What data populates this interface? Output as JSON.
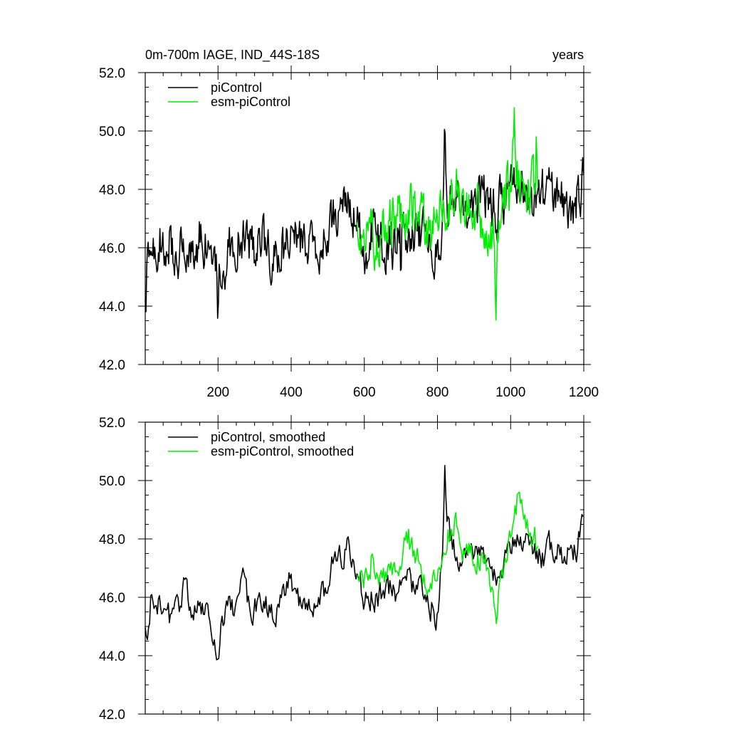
{
  "chart_data": [
    {
      "type": "line",
      "title": "0m-700m IAGE, IND_44S-18S",
      "units": "years",
      "xlim": [
        1,
        1200
      ],
      "ylim": [
        42,
        52
      ],
      "xticks": [
        200,
        400,
        600,
        800,
        1000,
        1200
      ],
      "xtick_labels": [
        "200",
        "400",
        "600",
        "800",
        "1000",
        "1200"
      ],
      "yticks": [
        42,
        44,
        46,
        48,
        50,
        52
      ],
      "ytick_labels": [
        "42.0",
        "44.0",
        "46.0",
        "48.0",
        "50.0",
        "52.0"
      ],
      "legend": [
        "piControl",
        "esm-piControl"
      ],
      "series": [
        {
          "name": "piControl",
          "color": "#000000",
          "start": 1,
          "end": 1200,
          "step": 2,
          "keys": [
            [
              1,
              44.8
            ],
            [
              10,
              45.3
            ],
            [
              30,
              46.0
            ],
            [
              50,
              46.4
            ],
            [
              80,
              45.9
            ],
            [
              100,
              46.0
            ],
            [
              120,
              45.8
            ],
            [
              150,
              46.3
            ],
            [
              170,
              46.1
            ],
            [
              190,
              45.2
            ],
            [
              200,
              44.9
            ],
            [
              230,
              45.9
            ],
            [
              260,
              46.3
            ],
            [
              290,
              46.0
            ],
            [
              320,
              46.2
            ],
            [
              350,
              45.5
            ],
            [
              380,
              46.0
            ],
            [
              400,
              46.4
            ],
            [
              430,
              46.0
            ],
            [
              460,
              45.8
            ],
            [
              490,
              46.4
            ],
            [
              520,
              47.2
            ],
            [
              550,
              47.4
            ],
            [
              580,
              47.0
            ],
            [
              600,
              46.0
            ],
            [
              630,
              46.5
            ],
            [
              660,
              46.2
            ],
            [
              690,
              46.2
            ],
            [
              720,
              46.6
            ],
            [
              750,
              46.5
            ],
            [
              780,
              46.2
            ],
            [
              800,
              46.0
            ],
            [
              820,
              47.5
            ],
            [
              840,
              47.9
            ],
            [
              860,
              47.5
            ],
            [
              880,
              47.5
            ],
            [
              900,
              47.6
            ],
            [
              930,
              47.8
            ],
            [
              960,
              47.2
            ],
            [
              990,
              47.9
            ],
            [
              1010,
              48.2
            ],
            [
              1040,
              48.1
            ],
            [
              1060,
              47.8
            ],
            [
              1100,
              47.8
            ],
            [
              1140,
              47.6
            ],
            [
              1170,
              47.5
            ],
            [
              1200,
              48.3
            ]
          ],
          "noise": 0.75,
          "events": [
            [
              200,
              -2.0,
              4
            ],
            [
              820,
              2.7,
              6
            ],
            [
              700,
              -1.8,
              3
            ],
            [
              1,
              -1.0,
              5
            ],
            [
              960,
              -0.8,
              6
            ]
          ]
        },
        {
          "name": "esm-piControl",
          "color": "#00ee00",
          "start": 580,
          "end": 1075,
          "step": 2,
          "keys": [
            [
              580,
              46.4
            ],
            [
              600,
              46.5
            ],
            [
              630,
              46.3
            ],
            [
              660,
              46.6
            ],
            [
              700,
              47.3
            ],
            [
              720,
              47.6
            ],
            [
              750,
              46.9
            ],
            [
              780,
              46.3
            ],
            [
              800,
              47.0
            ],
            [
              830,
              47.6
            ],
            [
              850,
              47.9
            ],
            [
              880,
              47.3
            ],
            [
              900,
              47.3
            ],
            [
              930,
              47.1
            ],
            [
              950,
              46.3
            ],
            [
              960,
              45.8
            ],
            [
              980,
              47.4
            ],
            [
              1000,
              48.3
            ],
            [
              1010,
              48.7
            ],
            [
              1030,
              48.4
            ],
            [
              1060,
              48.1
            ],
            [
              1075,
              48.4
            ]
          ],
          "noise": 0.8,
          "events": [
            [
              960,
              -1.4,
              4
            ],
            [
              1010,
              1.3,
              5
            ],
            [
              1070,
              1.0,
              4
            ]
          ]
        }
      ]
    },
    {
      "type": "line",
      "title": "",
      "units": "",
      "xlim": [
        1,
        1200
      ],
      "ylim": [
        42,
        52
      ],
      "xticks": [
        200,
        400,
        600,
        800,
        1000,
        1200
      ],
      "xtick_labels": [],
      "yticks": [
        42,
        44,
        46,
        48,
        50,
        52
      ],
      "ytick_labels": [
        "42.0",
        "44.0",
        "46.0",
        "48.0",
        "50.0",
        "52.0"
      ],
      "legend": [
        "piControl, smoothed",
        "esm-piControl, smoothed"
      ],
      "series": [
        {
          "name": "piControl, smoothed",
          "color": "#000000",
          "start": 1,
          "end": 1200,
          "step": 3,
          "keys": [
            [
              1,
              44.7
            ],
            [
              10,
              45.0
            ],
            [
              20,
              46.3
            ],
            [
              30,
              46.1
            ],
            [
              60,
              45.2
            ],
            [
              90,
              45.6
            ],
            [
              110,
              46.3
            ],
            [
              140,
              45.4
            ],
            [
              170,
              45.6
            ],
            [
              190,
              44.8
            ],
            [
              200,
              44.0
            ],
            [
              220,
              45.7
            ],
            [
              250,
              45.7
            ],
            [
              270,
              46.5
            ],
            [
              290,
              45.4
            ],
            [
              320,
              45.9
            ],
            [
              350,
              45.4
            ],
            [
              380,
              46.1
            ],
            [
              400,
              46.7
            ],
            [
              430,
              45.6
            ],
            [
              460,
              45.5
            ],
            [
              490,
              46.3
            ],
            [
              520,
              47.4
            ],
            [
              560,
              47.6
            ],
            [
              580,
              47.0
            ],
            [
              600,
              45.9
            ],
            [
              630,
              46.0
            ],
            [
              660,
              46.2
            ],
            [
              690,
              46.3
            ],
            [
              720,
              46.7
            ],
            [
              760,
              46.0
            ],
            [
              790,
              45.6
            ],
            [
              800,
              45.2
            ],
            [
              820,
              49.2
            ],
            [
              840,
              47.8
            ],
            [
              860,
              47.0
            ],
            [
              880,
              47.6
            ],
            [
              900,
              47.2
            ],
            [
              930,
              47.7
            ],
            [
              960,
              46.5
            ],
            [
              990,
              47.5
            ],
            [
              1010,
              48.2
            ],
            [
              1050,
              47.9
            ],
            [
              1080,
              47.3
            ],
            [
              1110,
              47.7
            ],
            [
              1150,
              47.3
            ],
            [
              1180,
              47.7
            ],
            [
              1200,
              48.6
            ]
          ],
          "noise": 0.42,
          "events": [
            [
              820,
              1.0,
              4
            ],
            [
              1050,
              0.4,
              5
            ]
          ]
        },
        {
          "name": "esm-piControl, smoothed",
          "color": "#00ee00",
          "start": 580,
          "end": 1075,
          "step": 3,
          "keys": [
            [
              580,
              46.5
            ],
            [
              600,
              46.4
            ],
            [
              620,
              47.3
            ],
            [
              640,
              46.5
            ],
            [
              660,
              46.8
            ],
            [
              700,
              47.3
            ],
            [
              720,
              48.0
            ],
            [
              750,
              47.1
            ],
            [
              780,
              46.3
            ],
            [
              800,
              47.0
            ],
            [
              830,
              48.1
            ],
            [
              850,
              48.5
            ],
            [
              870,
              47.4
            ],
            [
              900,
              47.5
            ],
            [
              930,
              47.2
            ],
            [
              950,
              46.1
            ],
            [
              960,
              45.3
            ],
            [
              970,
              46.7
            ],
            [
              990,
              47.4
            ],
            [
              1010,
              48.9
            ],
            [
              1020,
              49.4
            ],
            [
              1040,
              48.4
            ],
            [
              1060,
              48.0
            ],
            [
              1075,
              47.6
            ]
          ],
          "noise": 0.4,
          "events": [
            [
              1065,
              1.2,
              4
            ]
          ]
        }
      ]
    }
  ]
}
